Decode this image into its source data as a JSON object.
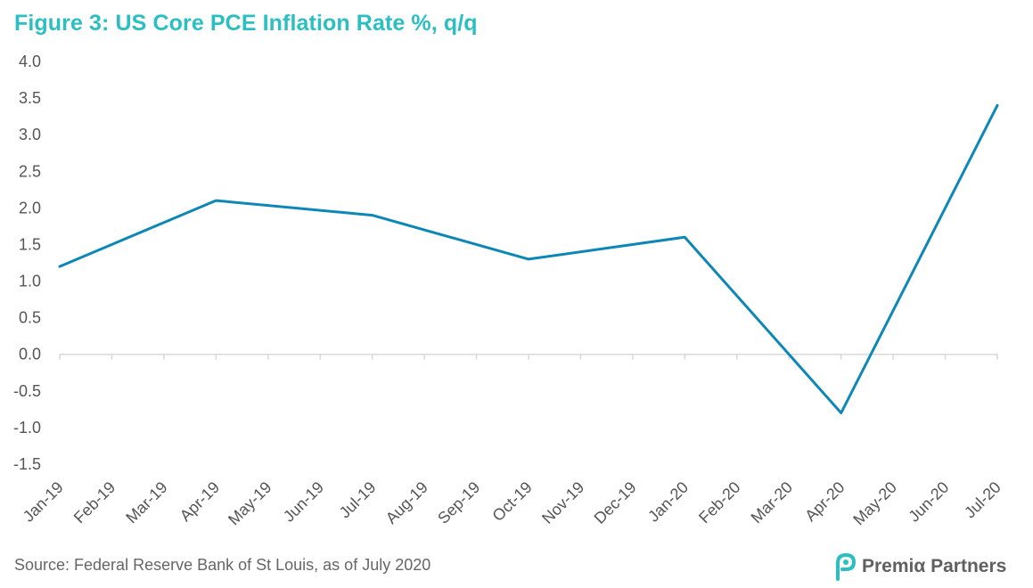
{
  "brand": {
    "name": "Premiα Partners",
    "logo_icon": "premia-p-logo-icon",
    "logo_color": "#2bbfc2"
  },
  "source_note": "Source: Federal Reserve Bank of St Louis, as of July 2020",
  "colors": {
    "title": "#2bbfc2",
    "line": "#0d87b6",
    "axis": "#d9d9d9",
    "text": "#555555"
  },
  "chart_data": {
    "type": "line",
    "title": "Figure 3: US Core PCE Inflation Rate %, q/q",
    "xlabel": "",
    "ylabel": "",
    "ylim": [
      -1.5,
      4.0
    ],
    "yticks": [
      4.0,
      3.5,
      3.0,
      2.5,
      2.0,
      1.5,
      1.0,
      0.5,
      0.0,
      -0.5,
      -1.0,
      -1.5
    ],
    "grid": false,
    "legend": "none",
    "categories": [
      "Jan-19",
      "Feb-19",
      "Mar-19",
      "Apr-19",
      "May-19",
      "Jun-19",
      "Jul-19",
      "Aug-19",
      "Sep-19",
      "Oct-19",
      "Nov-19",
      "Dec-19",
      "Jan-20",
      "Feb-20",
      "Mar-20",
      "Apr-20",
      "May-20",
      "Jun-20",
      "Jul-20"
    ],
    "series": [
      {
        "points": [
          {
            "x": "Jan-19",
            "y": 1.2
          },
          {
            "x": "Apr-19",
            "y": 2.1
          },
          {
            "x": "Jul-19",
            "y": 1.9
          },
          {
            "x": "Oct-19",
            "y": 1.3
          },
          {
            "x": "Jan-20",
            "y": 1.6
          },
          {
            "x": "Apr-20",
            "y": -0.8
          },
          {
            "x": "Jul-20",
            "y": 3.4
          }
        ]
      }
    ]
  }
}
